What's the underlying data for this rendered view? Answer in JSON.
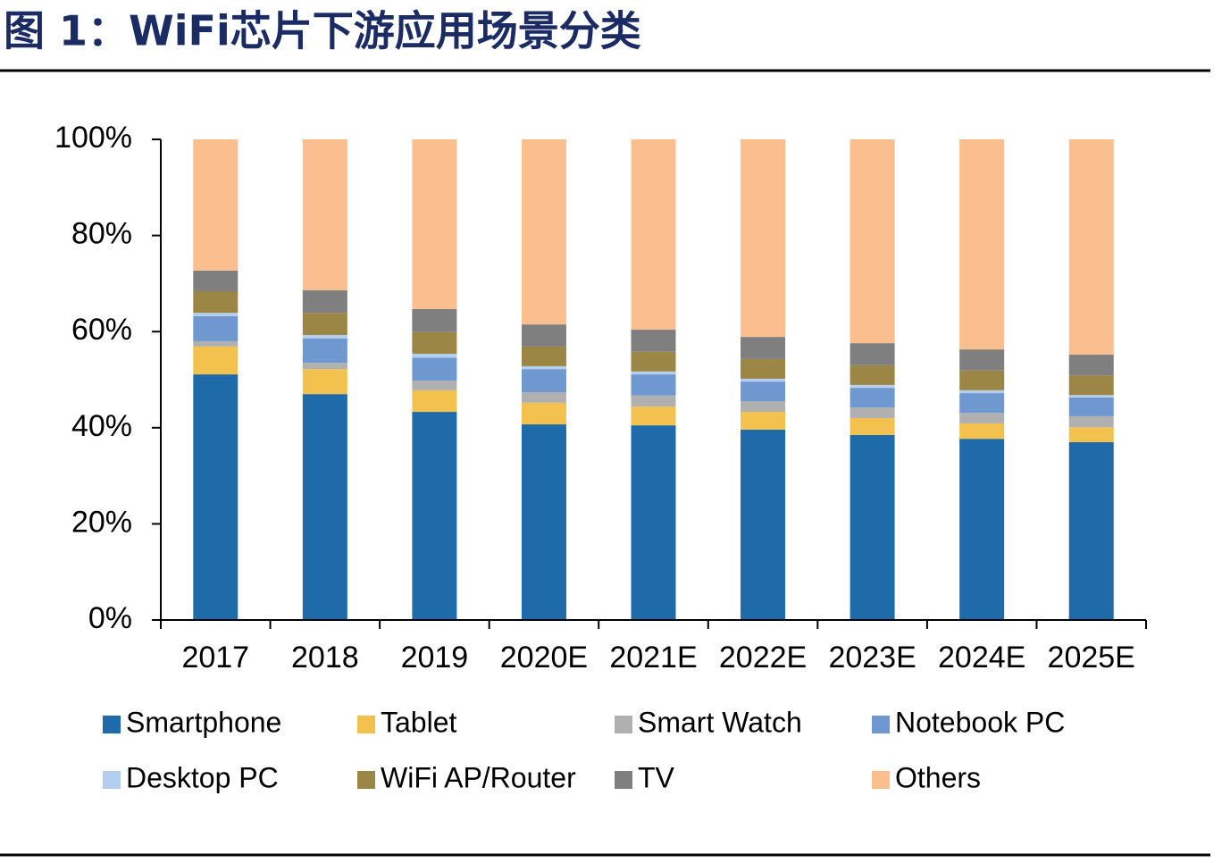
{
  "chart_data": {
    "type": "stacked_bar",
    "title": "图 1：WiFi芯片下游应用场景分类",
    "categories": [
      "2017",
      "2018",
      "2019",
      "2020E",
      "2021E",
      "2022E",
      "2023E",
      "2024E",
      "2025E"
    ],
    "series": [
      {
        "name": "Smartphone",
        "color": "#1f6aa8",
        "values": [
          51.1,
          47.0,
          43.3,
          40.7,
          40.5,
          39.6,
          38.5,
          37.7,
          37.0
        ]
      },
      {
        "name": "Tablet",
        "color": "#f2c14e",
        "values": [
          5.8,
          5.2,
          4.5,
          4.5,
          3.9,
          3.7,
          3.5,
          3.2,
          3.1
        ]
      },
      {
        "name": "Smart Watch",
        "color": "#b0b0b0",
        "values": [
          1.1,
          1.3,
          2.0,
          2.2,
          2.3,
          2.2,
          2.2,
          2.2,
          2.3
        ]
      },
      {
        "name": "Notebook PC",
        "color": "#6f97d0",
        "values": [
          5.2,
          5.1,
          4.8,
          4.8,
          4.4,
          4.1,
          4.1,
          4.1,
          3.9
        ]
      },
      {
        "name": "Desktop PC",
        "color": "#b4cfee",
        "values": [
          0.7,
          0.7,
          0.8,
          0.6,
          0.6,
          0.6,
          0.6,
          0.6,
          0.5
        ]
      },
      {
        "name": "WiFi AP/Router",
        "color": "#9c8646",
        "values": [
          4.5,
          4.6,
          4.5,
          4.1,
          4.1,
          4.1,
          4.1,
          4.1,
          4.1
        ]
      },
      {
        "name": "TV",
        "color": "#7f7f7f",
        "values": [
          4.3,
          4.7,
          4.8,
          4.6,
          4.6,
          4.6,
          4.6,
          4.4,
          4.3
        ]
      },
      {
        "name": "Others",
        "color": "#fbbf8f",
        "values": [
          27.3,
          31.4,
          35.3,
          38.5,
          39.6,
          41.1,
          42.4,
          43.7,
          44.8
        ]
      }
    ],
    "ylim": [
      0,
      100
    ],
    "yticks": [
      {
        "value": 0,
        "label": "0%"
      },
      {
        "value": 20,
        "label": "20%"
      },
      {
        "value": 40,
        "label": "40%"
      },
      {
        "value": 60,
        "label": "60%"
      },
      {
        "value": 80,
        "label": "80%"
      },
      {
        "value": 100,
        "label": "100%"
      }
    ]
  }
}
